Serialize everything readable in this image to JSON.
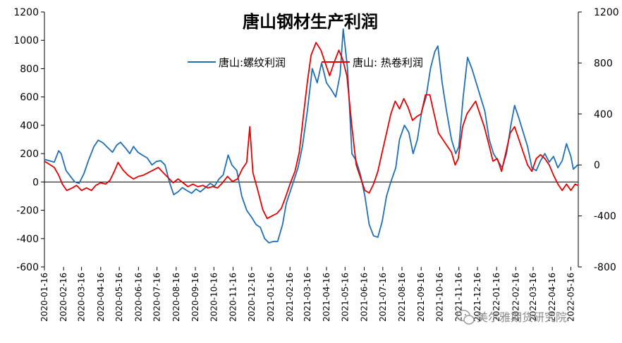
{
  "chart_data": {
    "type": "line",
    "title": "唐山钢材生产利润",
    "legend_position": "top-center",
    "grid": false,
    "left_axis": {
      "ticks": [
        -600,
        -400,
        -200,
        0,
        200,
        400,
        600,
        800,
        1000,
        1200
      ],
      "ylim": [
        -600,
        1200
      ]
    },
    "right_axis": {
      "ticks": [
        -800,
        -400,
        0,
        400,
        800,
        1200
      ],
      "ylim": [
        -800,
        1200
      ]
    },
    "x_ticks": [
      "2020-01-16",
      "2020-02-16",
      "2020-03-16",
      "2020-04-16",
      "2020-05-16",
      "2020-06-16",
      "2020-07-16",
      "2020-08-16",
      "2020-09-16",
      "2020-10-16",
      "2020-11-16",
      "2020-12-16",
      "2021-01-16",
      "2021-02-16",
      "2021-03-16",
      "2021-04-16",
      "2021-05-16",
      "2021-06-16",
      "2021-07-16",
      "2021-08-16",
      "2021-09-16",
      "2021-10-16",
      "2021-11-16",
      "2021-12-16",
      "2022-01-16",
      "2022-02-16",
      "2022-03-16",
      "2022-04-16",
      "2022-05-16"
    ],
    "series": [
      {
        "name": "唐山:螺纹利润",
        "axis": "left",
        "color": "#1f6fb5",
        "points": [
          [
            "2020-01-16",
            160
          ],
          [
            "2020-02-01",
            140
          ],
          [
            "2020-02-08",
            220
          ],
          [
            "2020-02-12",
            200
          ],
          [
            "2020-02-20",
            80
          ],
          [
            "2020-02-27",
            40
          ],
          [
            "2020-03-05",
            0
          ],
          [
            "2020-03-12",
            -10
          ],
          [
            "2020-03-20",
            60
          ],
          [
            "2020-03-27",
            150
          ],
          [
            "2020-04-05",
            250
          ],
          [
            "2020-04-12",
            295
          ],
          [
            "2020-04-20",
            275
          ],
          [
            "2020-04-28",
            240
          ],
          [
            "2020-05-05",
            210
          ],
          [
            "2020-05-12",
            260
          ],
          [
            "2020-05-18",
            280
          ],
          [
            "2020-05-26",
            240
          ],
          [
            "2020-06-02",
            200
          ],
          [
            "2020-06-08",
            250
          ],
          [
            "2020-06-15",
            210
          ],
          [
            "2020-06-22",
            190
          ],
          [
            "2020-06-30",
            170
          ],
          [
            "2020-07-08",
            120
          ],
          [
            "2020-07-15",
            145
          ],
          [
            "2020-07-22",
            150
          ],
          [
            "2020-07-29",
            120
          ],
          [
            "2020-08-05",
            0
          ],
          [
            "2020-08-12",
            -90
          ],
          [
            "2020-08-19",
            -70
          ],
          [
            "2020-08-26",
            -40
          ],
          [
            "2020-09-02",
            -60
          ],
          [
            "2020-09-10",
            -80
          ],
          [
            "2020-09-17",
            -50
          ],
          [
            "2020-09-24",
            -70
          ],
          [
            "2020-10-02",
            -40
          ],
          [
            "2020-10-10",
            -10
          ],
          [
            "2020-10-17",
            -30
          ],
          [
            "2020-10-24",
            20
          ],
          [
            "2020-10-31",
            50
          ],
          [
            "2020-11-08",
            190
          ],
          [
            "2020-11-14",
            120
          ],
          [
            "2020-11-22",
            80
          ],
          [
            "2020-11-30",
            -100
          ],
          [
            "2020-12-08",
            -200
          ],
          [
            "2020-12-16",
            -250
          ],
          [
            "2020-12-23",
            -300
          ],
          [
            "2020-12-30",
            -320
          ],
          [
            "2021-01-06",
            -400
          ],
          [
            "2021-01-13",
            -430
          ],
          [
            "2021-01-20",
            -420
          ],
          [
            "2021-01-27",
            -420
          ],
          [
            "2021-02-04",
            -300
          ],
          [
            "2021-02-10",
            -150
          ],
          [
            "2021-02-20",
            -20
          ],
          [
            "2021-03-01",
            100
          ],
          [
            "2021-03-08",
            250
          ],
          [
            "2021-03-16",
            500
          ],
          [
            "2021-03-24",
            800
          ],
          [
            "2021-04-01",
            700
          ],
          [
            "2021-04-08",
            840
          ],
          [
            "2021-04-16",
            700
          ],
          [
            "2021-04-24",
            650
          ],
          [
            "2021-05-01",
            600
          ],
          [
            "2021-05-08",
            760
          ],
          [
            "2021-05-13",
            1080
          ],
          [
            "2021-05-20",
            800
          ],
          [
            "2021-05-27",
            200
          ],
          [
            "2021-06-03",
            150
          ],
          [
            "2021-06-10",
            50
          ],
          [
            "2021-06-17",
            -100
          ],
          [
            "2021-06-24",
            -300
          ],
          [
            "2021-07-01",
            -380
          ],
          [
            "2021-07-08",
            -390
          ],
          [
            "2021-07-15",
            -280
          ],
          [
            "2021-07-22",
            -100
          ],
          [
            "2021-07-29",
            0
          ],
          [
            "2021-08-06",
            100
          ],
          [
            "2021-08-12",
            300
          ],
          [
            "2021-08-20",
            400
          ],
          [
            "2021-08-27",
            350
          ],
          [
            "2021-09-03",
            200
          ],
          [
            "2021-09-10",
            300
          ],
          [
            "2021-09-17",
            500
          ],
          [
            "2021-09-24",
            600
          ],
          [
            "2021-10-01",
            800
          ],
          [
            "2021-10-08",
            920
          ],
          [
            "2021-10-13",
            960
          ],
          [
            "2021-10-20",
            700
          ],
          [
            "2021-10-27",
            500
          ],
          [
            "2021-11-04",
            300
          ],
          [
            "2021-11-11",
            200
          ],
          [
            "2021-11-16",
            250
          ],
          [
            "2021-11-23",
            600
          ],
          [
            "2021-11-30",
            880
          ],
          [
            "2021-12-07",
            800
          ],
          [
            "2021-12-14",
            700
          ],
          [
            "2021-12-21",
            600
          ],
          [
            "2021-12-28",
            500
          ],
          [
            "2022-01-04",
            300
          ],
          [
            "2022-01-11",
            200
          ],
          [
            "2022-01-18",
            150
          ],
          [
            "2022-01-25",
            100
          ],
          [
            "2022-02-01",
            200
          ],
          [
            "2022-02-08",
            400
          ],
          [
            "2022-02-14",
            540
          ],
          [
            "2022-02-21",
            450
          ],
          [
            "2022-02-28",
            350
          ],
          [
            "2022-03-07",
            250
          ],
          [
            "2022-03-14",
            100
          ],
          [
            "2022-03-21",
            80
          ],
          [
            "2022-03-28",
            150
          ],
          [
            "2022-04-04",
            200
          ],
          [
            "2022-04-11",
            140
          ],
          [
            "2022-04-18",
            180
          ],
          [
            "2022-04-25",
            100
          ],
          [
            "2022-05-02",
            150
          ],
          [
            "2022-05-09",
            270
          ],
          [
            "2022-05-16",
            180
          ],
          [
            "2022-05-20",
            90
          ],
          [
            "2022-05-27",
            120
          ]
        ]
      },
      {
        "name": "唐山: 热卷利润",
        "axis": "right",
        "color": "#e60000",
        "points": [
          [
            "2020-01-16",
            30
          ],
          [
            "2020-02-01",
            -20
          ],
          [
            "2020-02-08",
            -80
          ],
          [
            "2020-02-14",
            -150
          ],
          [
            "2020-02-21",
            -200
          ],
          [
            "2020-03-01",
            -180
          ],
          [
            "2020-03-08",
            -160
          ],
          [
            "2020-03-16",
            -200
          ],
          [
            "2020-03-24",
            -180
          ],
          [
            "2020-04-01",
            -200
          ],
          [
            "2020-04-08",
            -160
          ],
          [
            "2020-04-16",
            -140
          ],
          [
            "2020-04-24",
            -150
          ],
          [
            "2020-05-01",
            -120
          ],
          [
            "2020-05-08",
            -50
          ],
          [
            "2020-05-14",
            20
          ],
          [
            "2020-05-22",
            -40
          ],
          [
            "2020-05-30",
            -80
          ],
          [
            "2020-06-08",
            -110
          ],
          [
            "2020-06-16",
            -90
          ],
          [
            "2020-06-24",
            -80
          ],
          [
            "2020-07-02",
            -60
          ],
          [
            "2020-07-10",
            -40
          ],
          [
            "2020-07-18",
            -20
          ],
          [
            "2020-07-26",
            -60
          ],
          [
            "2020-08-03",
            -100
          ],
          [
            "2020-08-11",
            -140
          ],
          [
            "2020-08-19",
            -110
          ],
          [
            "2020-08-27",
            -140
          ],
          [
            "2020-09-04",
            -170
          ],
          [
            "2020-09-12",
            -150
          ],
          [
            "2020-09-20",
            -170
          ],
          [
            "2020-09-28",
            -160
          ],
          [
            "2020-10-06",
            -180
          ],
          [
            "2020-10-14",
            -170
          ],
          [
            "2020-10-22",
            -180
          ],
          [
            "2020-10-30",
            -140
          ],
          [
            "2020-11-07",
            -90
          ],
          [
            "2020-11-15",
            -130
          ],
          [
            "2020-11-23",
            -110
          ],
          [
            "2020-12-01",
            -30
          ],
          [
            "2020-12-08",
            20
          ],
          [
            "2020-12-13",
            300
          ],
          [
            "2020-12-18",
            -60
          ],
          [
            "2020-12-26",
            -200
          ],
          [
            "2021-01-03",
            -350
          ],
          [
            "2021-01-10",
            -420
          ],
          [
            "2021-01-18",
            -400
          ],
          [
            "2021-01-26",
            -380
          ],
          [
            "2021-02-02",
            -340
          ],
          [
            "2021-02-09",
            -250
          ],
          [
            "2021-02-16",
            -150
          ],
          [
            "2021-02-24",
            -50
          ],
          [
            "2021-03-03",
            100
          ],
          [
            "2021-03-10",
            400
          ],
          [
            "2021-03-16",
            650
          ],
          [
            "2021-03-22",
            860
          ],
          [
            "2021-03-30",
            960
          ],
          [
            "2021-04-07",
            900
          ],
          [
            "2021-04-14",
            800
          ],
          [
            "2021-04-21",
            700
          ],
          [
            "2021-04-28",
            800
          ],
          [
            "2021-05-06",
            900
          ],
          [
            "2021-05-12",
            830
          ],
          [
            "2021-05-19",
            700
          ],
          [
            "2021-05-27",
            300
          ],
          [
            "2021-06-03",
            0
          ],
          [
            "2021-06-10",
            -100
          ],
          [
            "2021-06-17",
            -200
          ],
          [
            "2021-06-24",
            -220
          ],
          [
            "2021-07-01",
            -150
          ],
          [
            "2021-07-08",
            -50
          ],
          [
            "2021-07-15",
            100
          ],
          [
            "2021-07-22",
            250
          ],
          [
            "2021-07-29",
            400
          ],
          [
            "2021-08-05",
            500
          ],
          [
            "2021-08-12",
            440
          ],
          [
            "2021-08-19",
            520
          ],
          [
            "2021-08-26",
            450
          ],
          [
            "2021-09-02",
            350
          ],
          [
            "2021-09-09",
            380
          ],
          [
            "2021-09-16",
            400
          ],
          [
            "2021-09-23",
            550
          ],
          [
            "2021-09-30",
            550
          ],
          [
            "2021-10-07",
            400
          ],
          [
            "2021-10-14",
            250
          ],
          [
            "2021-10-21",
            200
          ],
          [
            "2021-10-28",
            150
          ],
          [
            "2021-11-04",
            100
          ],
          [
            "2021-11-10",
            0
          ],
          [
            "2021-11-15",
            50
          ],
          [
            "2021-11-22",
            300
          ],
          [
            "2021-11-29",
            400
          ],
          [
            "2021-12-06",
            450
          ],
          [
            "2021-12-13",
            500
          ],
          [
            "2021-12-20",
            400
          ],
          [
            "2021-12-27",
            300
          ],
          [
            "2022-01-04",
            150
          ],
          [
            "2022-01-10",
            30
          ],
          [
            "2022-01-17",
            50
          ],
          [
            "2022-01-24",
            -50
          ],
          [
            "2022-01-31",
            100
          ],
          [
            "2022-02-07",
            250
          ],
          [
            "2022-02-14",
            300
          ],
          [
            "2022-02-21",
            200
          ],
          [
            "2022-02-28",
            100
          ],
          [
            "2022-03-07",
            0
          ],
          [
            "2022-03-14",
            -50
          ],
          [
            "2022-03-21",
            50
          ],
          [
            "2022-03-28",
            80
          ],
          [
            "2022-04-04",
            50
          ],
          [
            "2022-04-11",
            0
          ],
          [
            "2022-04-18",
            -80
          ],
          [
            "2022-04-25",
            -150
          ],
          [
            "2022-05-02",
            -200
          ],
          [
            "2022-05-09",
            -150
          ],
          [
            "2022-05-16",
            -200
          ],
          [
            "2022-05-23",
            -150
          ],
          [
            "2022-05-27",
            -160
          ]
        ]
      }
    ]
  },
  "watermark": {
    "text": "美尔雅期货研究院",
    "icon": "wechat-icon"
  }
}
